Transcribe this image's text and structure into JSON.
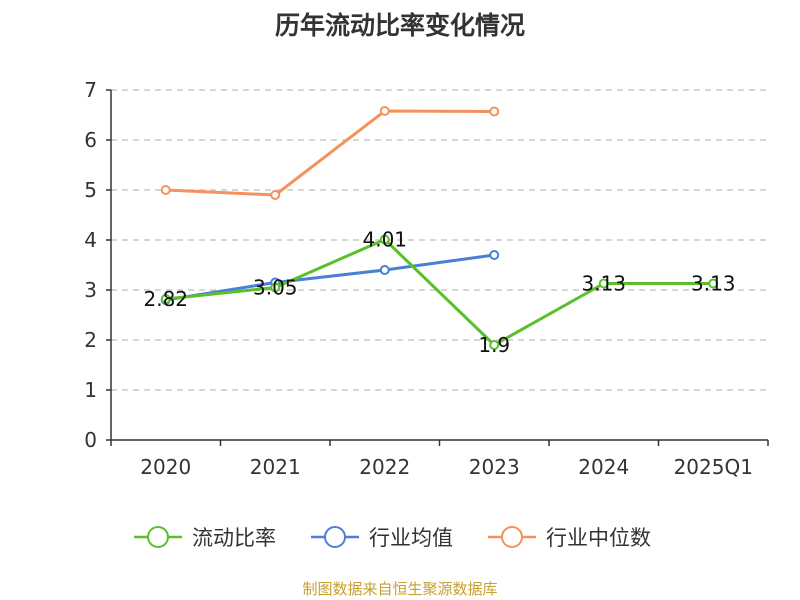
{
  "chart_data": {
    "type": "line",
    "title": "历年流动比率变化情况",
    "xlabel": "",
    "ylabel": "",
    "categories": [
      "2020",
      "2021",
      "2022",
      "2023",
      "2024",
      "2025Q1"
    ],
    "ylim": [
      0,
      7
    ],
    "yticks": [
      0,
      1,
      2,
      3,
      4,
      5,
      6,
      7
    ],
    "grid": "horizontal dashed",
    "legend_position": "bottom",
    "series": [
      {
        "name": "流动比率",
        "color": "#5bbf2c",
        "values": [
          2.82,
          3.05,
          4.01,
          1.9,
          3.13,
          3.13
        ],
        "data_labels": [
          "2.82",
          "3.05",
          "4.01",
          "1.9",
          "3.13",
          "3.13"
        ]
      },
      {
        "name": "行业均值",
        "color": "#4a7fd6",
        "values": [
          2.8,
          3.15,
          3.4,
          3.7,
          null,
          null
        ]
      },
      {
        "name": "行业中位数",
        "color": "#f5915a",
        "values": [
          5.0,
          4.9,
          6.58,
          6.57,
          null,
          null
        ]
      }
    ]
  },
  "source_note": "制图数据来自恒生聚源数据库"
}
